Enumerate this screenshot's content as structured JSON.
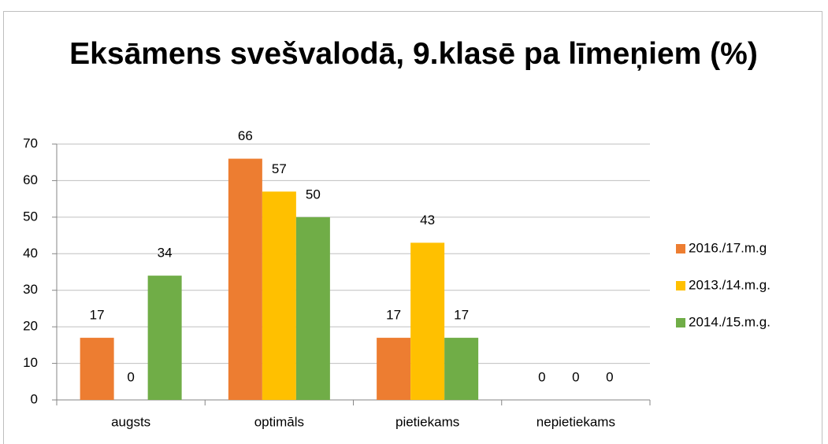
{
  "chart_data": {
    "type": "bar",
    "title": "Eksāmens svešvalodā, 9.klasē pa līmeņiem (%)",
    "categories": [
      "augsts",
      "optimāls",
      "pietiekams",
      "nepietiekams"
    ],
    "series": [
      {
        "name": "2016./17.m.g",
        "color": "#ed7d31",
        "values": [
          17,
          66,
          17,
          0
        ]
      },
      {
        "name": "2013./14.m.g.",
        "color": "#ffc000",
        "values": [
          0,
          57,
          43,
          0
        ]
      },
      {
        "name": "2014./15.m.g.",
        "color": "#70ad47",
        "values": [
          34,
          50,
          17,
          0
        ]
      }
    ],
    "ylim": [
      0,
      70
    ],
    "yticks": [
      0,
      10,
      20,
      30,
      40,
      50,
      60,
      70
    ],
    "grid": true,
    "legend": "right"
  }
}
